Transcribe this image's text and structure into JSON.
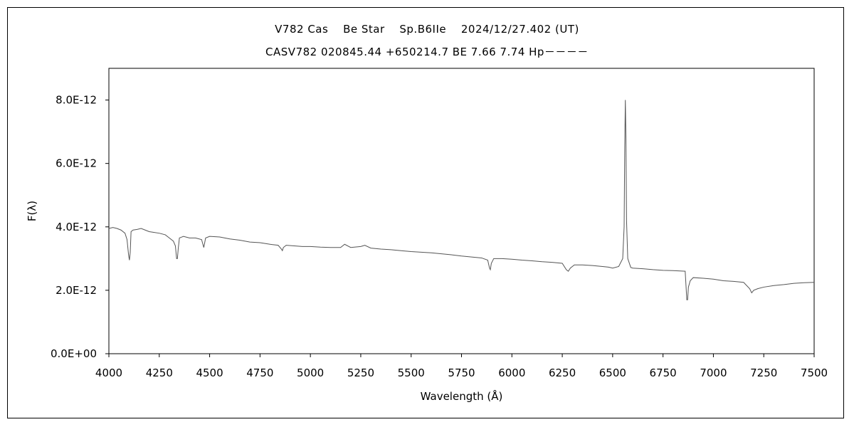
{
  "chart_data": {
    "type": "line",
    "title": "V782 Cas　 Be Star　 Sp.B6IIe　 2024/12/27.402 (UT)",
    "subtitle": "CASV782 020845.44 +650214.7 BE 7.66 7.74 Hp－－－－",
    "xlabel": "Wavelength (Å)",
    "ylabel": "F(λ)",
    "xlim": [
      4000,
      7500
    ],
    "ylim": [
      0,
      9e-12
    ],
    "x_ticks": [
      4000,
      4250,
      4500,
      4750,
      5000,
      5250,
      5500,
      5750,
      6000,
      6250,
      6500,
      6750,
      7000,
      7250,
      7500
    ],
    "x_tick_labels": [
      "4000",
      "4250",
      "4500",
      "4750",
      "5000",
      "5250",
      "5500",
      "5750",
      "6000",
      "6250",
      "6500",
      "6750",
      "7000",
      "7250",
      "7500"
    ],
    "y_ticks": [
      0,
      2e-12,
      4e-12,
      6e-12,
      8e-12
    ],
    "y_tick_labels": [
      "0.0E+00",
      "2.0E-12",
      "4.0E-12",
      "6.0E-12",
      "8.0E-12"
    ],
    "grid": false,
    "legend": "none",
    "line_color": "#555555",
    "series": [
      {
        "x": [
          4000,
          4020,
          4040,
          4060,
          4080,
          4090,
          4098,
          4102,
          4106,
          4110,
          4120,
          4140,
          4160,
          4180,
          4200,
          4220,
          4250,
          4280,
          4300,
          4320,
          4330,
          4336,
          4340,
          4344,
          4350,
          4370,
          4400,
          4430,
          4460,
          4471,
          4480,
          4500,
          4550,
          4600,
          4650,
          4700,
          4750,
          4800,
          4840,
          4856,
          4861,
          4866,
          4880,
          4920,
          4960,
          5000,
          5050,
          5100,
          5150,
          5170,
          5200,
          5250,
          5270,
          5300,
          5350,
          5400,
          5450,
          5500,
          5550,
          5600,
          5650,
          5700,
          5750,
          5800,
          5850,
          5880,
          5889,
          5893,
          5898,
          5910,
          5950,
          6000,
          6050,
          6100,
          6150,
          6200,
          6250,
          6270,
          6280,
          6290,
          6310,
          6350,
          6400,
          6450,
          6480,
          6500,
          6530,
          6550,
          6557,
          6560,
          6563,
          6566,
          6569,
          6575,
          6590,
          6600,
          6650,
          6700,
          6750,
          6800,
          6860,
          6868,
          6872,
          6876,
          6885,
          6900,
          6950,
          7000,
          7050,
          7100,
          7150,
          7180,
          7190,
          7200,
          7220,
          7250,
          7300,
          7350,
          7400,
          7450,
          7500
        ],
        "y": [
          3.95e-12,
          3.98e-12,
          3.95e-12,
          3.9e-12,
          3.8e-12,
          3.6e-12,
          3.1e-12,
          2.95e-12,
          3.2e-12,
          3.85e-12,
          3.9e-12,
          3.92e-12,
          3.95e-12,
          3.9e-12,
          3.85e-12,
          3.83e-12,
          3.8e-12,
          3.75e-12,
          3.65e-12,
          3.55e-12,
          3.4e-12,
          3e-12,
          3e-12,
          3.3e-12,
          3.65e-12,
          3.7e-12,
          3.65e-12,
          3.65e-12,
          3.6e-12,
          3.35e-12,
          3.65e-12,
          3.7e-12,
          3.68e-12,
          3.62e-12,
          3.58e-12,
          3.52e-12,
          3.5e-12,
          3.45e-12,
          3.42e-12,
          3.3e-12,
          3.25e-12,
          3.35e-12,
          3.42e-12,
          3.4e-12,
          3.38e-12,
          3.38e-12,
          3.36e-12,
          3.35e-12,
          3.35e-12,
          3.45e-12,
          3.35e-12,
          3.38e-12,
          3.42e-12,
          3.33e-12,
          3.3e-12,
          3.28e-12,
          3.25e-12,
          3.22e-12,
          3.2e-12,
          3.18e-12,
          3.15e-12,
          3.12e-12,
          3.08e-12,
          3.05e-12,
          3.02e-12,
          2.95e-12,
          2.7e-12,
          2.65e-12,
          2.85e-12,
          3e-12,
          3e-12,
          2.98e-12,
          2.95e-12,
          2.93e-12,
          2.9e-12,
          2.88e-12,
          2.85e-12,
          2.65e-12,
          2.6e-12,
          2.7e-12,
          2.8e-12,
          2.8e-12,
          2.78e-12,
          2.75e-12,
          2.73e-12,
          2.7e-12,
          2.75e-12,
          3e-12,
          4e-12,
          6.5e-12,
          8e-12,
          6.8e-12,
          4.2e-12,
          3e-12,
          2.72e-12,
          2.7e-12,
          2.68e-12,
          2.65e-12,
          2.63e-12,
          2.62e-12,
          2.6e-12,
          1.7e-12,
          1.7e-12,
          2.1e-12,
          2.3e-12,
          2.4e-12,
          2.38e-12,
          2.35e-12,
          2.3e-12,
          2.28e-12,
          2.25e-12,
          2.05e-12,
          1.92e-12,
          2e-12,
          2.05e-12,
          2.1e-12,
          2.15e-12,
          2.18e-12,
          2.22e-12,
          2.24e-12,
          2.25e-12
        ]
      }
    ]
  }
}
